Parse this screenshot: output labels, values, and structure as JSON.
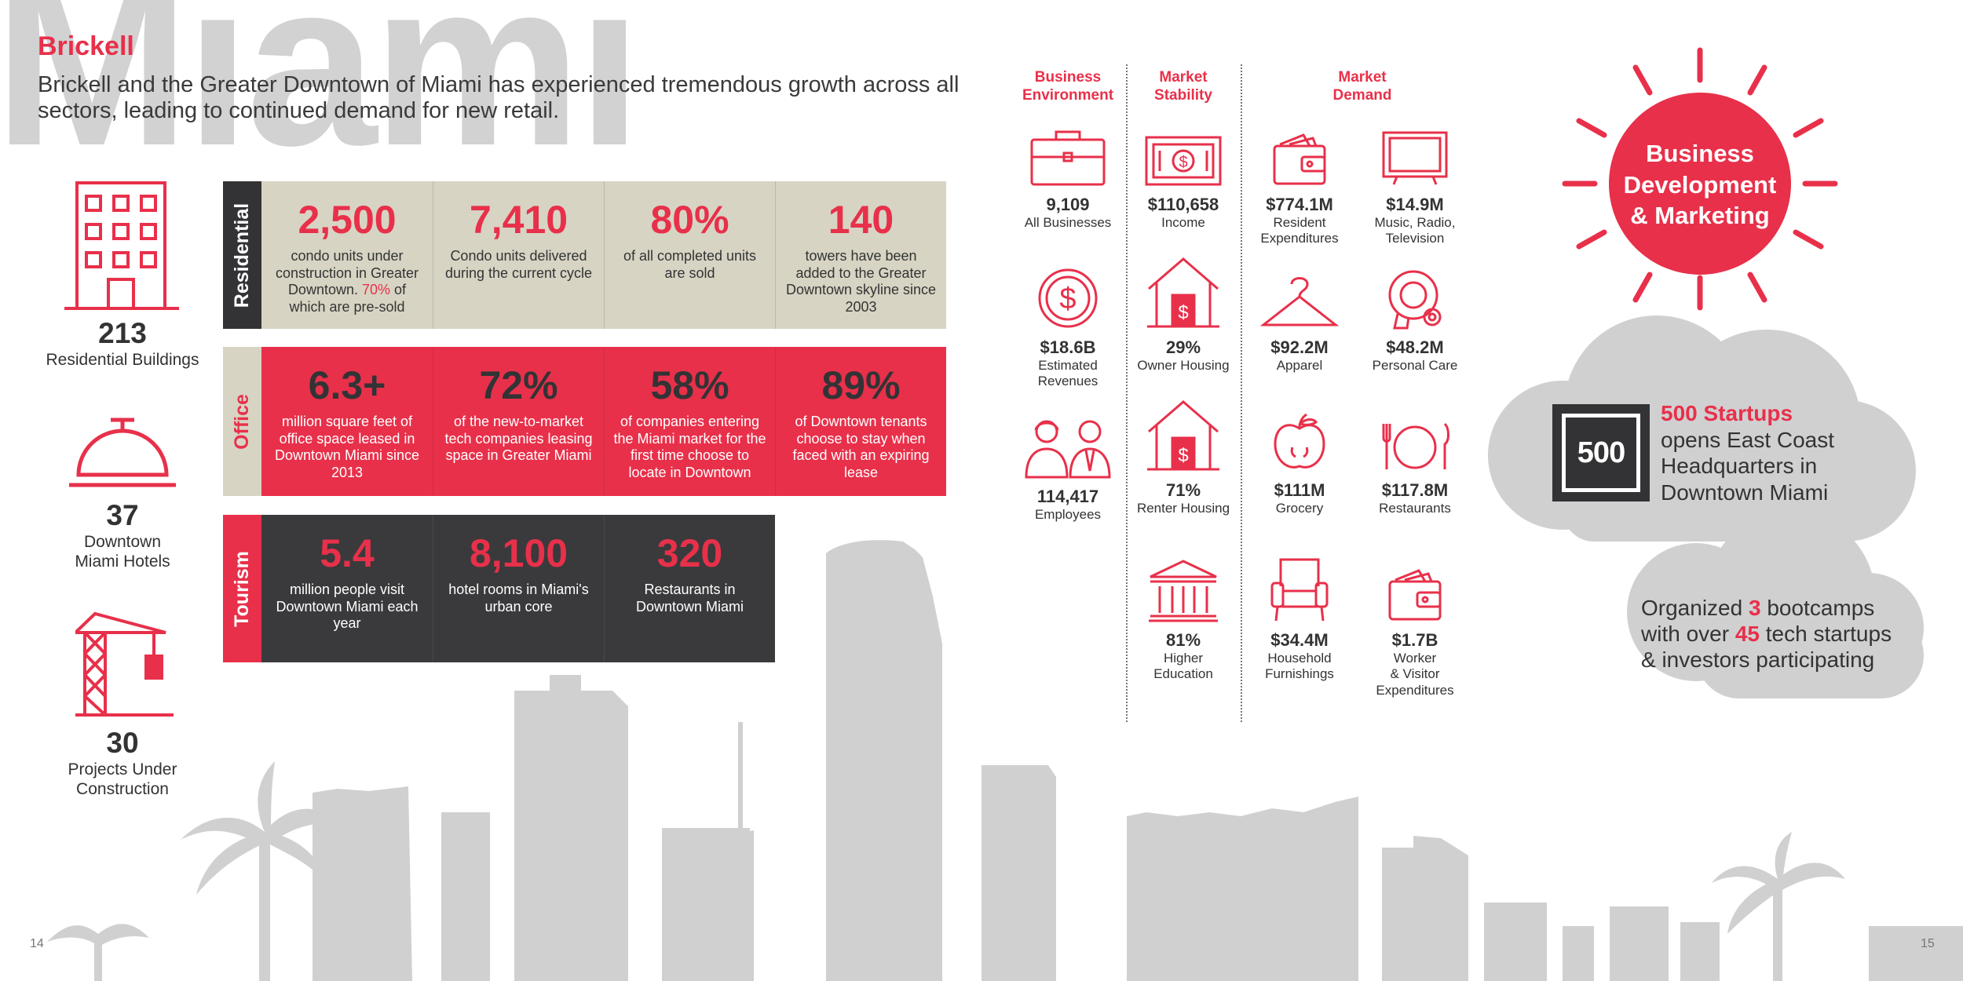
{
  "header": {
    "watermark": "Miami",
    "title": "Brickell",
    "intro": "Brickell and the Greater Downtown of Miami has experienced tremendous growth across all sectors, leading to continued demand for new retail."
  },
  "left_stats": [
    {
      "value": "213",
      "label": "Residential Buildings",
      "icon": "building-icon"
    },
    {
      "value": "37",
      "label_line1": "Downtown",
      "label_line2": "Miami Hotels",
      "icon": "hotel-bell-icon"
    },
    {
      "value": "30",
      "label_line1": "Projects Under",
      "label_line2": "Construction",
      "icon": "crane-icon"
    }
  ],
  "bands": {
    "residential": {
      "label": "Residential",
      "cells": [
        {
          "value": "2,500",
          "desc_pre": "condo units under construction in Greater Downtown.",
          "desc_highlight": "70%",
          "desc_post": "of which are pre-sold"
        },
        {
          "value": "7,410",
          "desc": "Condo units delivered during the current cycle"
        },
        {
          "value": "80%",
          "desc": "of all completed units are sold"
        },
        {
          "value": "140",
          "desc": "towers have been added to the Greater Downtown skyline since 2003"
        }
      ]
    },
    "office": {
      "label": "Office",
      "cells": [
        {
          "value": "6.3+",
          "desc": "million square feet of office space leased in Downtown Miami since 2013"
        },
        {
          "value": "72%",
          "desc": "of the new-to-market tech companies leasing space in Greater Miami"
        },
        {
          "value": "58%",
          "desc": "of companies entering the Miami market for the first time choose to locate in Downtown"
        },
        {
          "value": "89%",
          "desc": "of Downtown tenants choose to stay when faced with an expiring lease"
        }
      ]
    },
    "tourism": {
      "label": "Tourism",
      "cells": [
        {
          "value": "5.4",
          "desc": "million people visit Downtown Miami each year"
        },
        {
          "value": "8,100",
          "desc": "hotel rooms in Miami's urban core"
        },
        {
          "value": "320",
          "desc": "Restaurants in Downtown Miami"
        }
      ]
    }
  },
  "market": {
    "headers": {
      "business_environment_1": "Business",
      "business_environment_2": "Environment",
      "market_stability_1": "Market",
      "market_stability_2": "Stability",
      "market_demand_1": "Market",
      "market_demand_2": "Demand"
    },
    "items": {
      "all_businesses": {
        "value": "9,109",
        "label": "All Businesses",
        "icon": "briefcase-icon"
      },
      "estimated_revenues": {
        "value": "$18.6B",
        "label_1": "Estimated",
        "label_2": "Revenues",
        "icon": "dollar-coin-icon"
      },
      "employees": {
        "value": "114,417",
        "label": "Employees",
        "icon": "people-icon"
      },
      "income": {
        "value": "$110,658",
        "label": "Income",
        "icon": "banknote-icon"
      },
      "owner_housing": {
        "value": "29%",
        "label": "Owner Housing",
        "icon": "house-dollar-icon"
      },
      "renter_housing": {
        "value": "71%",
        "label": "Renter Housing",
        "icon": "house-dollar-icon"
      },
      "higher_education": {
        "value": "81%",
        "label_1": "Higher",
        "label_2": "Education",
        "icon": "university-icon"
      },
      "resident_expenditures": {
        "value": "$774.1M",
        "label_1": "Resident",
        "label_2": "Expenditures",
        "icon": "wallet-icon"
      },
      "music_radio_tv": {
        "value": "$14.9M",
        "label_1": "Music, Radio,",
        "label_2": "Television",
        "icon": "television-icon"
      },
      "apparel": {
        "value": "$92.2M",
        "label": "Apparel",
        "icon": "hanger-icon"
      },
      "personal_care": {
        "value": "$48.2M",
        "label": "Personal Care",
        "icon": "hair-dryer-icon"
      },
      "grocery": {
        "value": "$111M",
        "label": "Grocery",
        "icon": "apple-icon"
      },
      "restaurants": {
        "value": "$117.8M",
        "label": "Restaurants",
        "icon": "plate-fork-knife-icon"
      },
      "household_furnishings": {
        "value": "$34.4M",
        "label_1": "Household",
        "label_2": "Furnishings",
        "icon": "armchair-icon"
      },
      "worker_visitor": {
        "value": "$1.7B",
        "label_1": "Worker",
        "label_2": "& Visitor",
        "label_3": "Expenditures",
        "icon": "wallet-icon"
      }
    }
  },
  "right": {
    "sun_line1": "Business",
    "sun_line2": "Development",
    "sun_line3": "& Marketing",
    "logo_text": "500",
    "cloud1_highlight": "500 Startups",
    "cloud1_line2": "opens East Coast",
    "cloud1_line3": "Headquarters in",
    "cloud1_line4": "Downtown Miami",
    "cloud2_l1_pre": "Organized",
    "cloud2_l1_num": "3",
    "cloud2_l1_post": "bootcamps",
    "cloud2_l2_pre": "with over",
    "cloud2_l2_num": "45",
    "cloud2_l2_post": "tech startups",
    "cloud2_l3": "& investors participating"
  },
  "pages": {
    "left": "14",
    "right": "15"
  },
  "colors": {
    "accent": "#e8304a",
    "dark": "#333335",
    "beige": "#d7d4c4",
    "skyline": "#cfcfd0"
  }
}
